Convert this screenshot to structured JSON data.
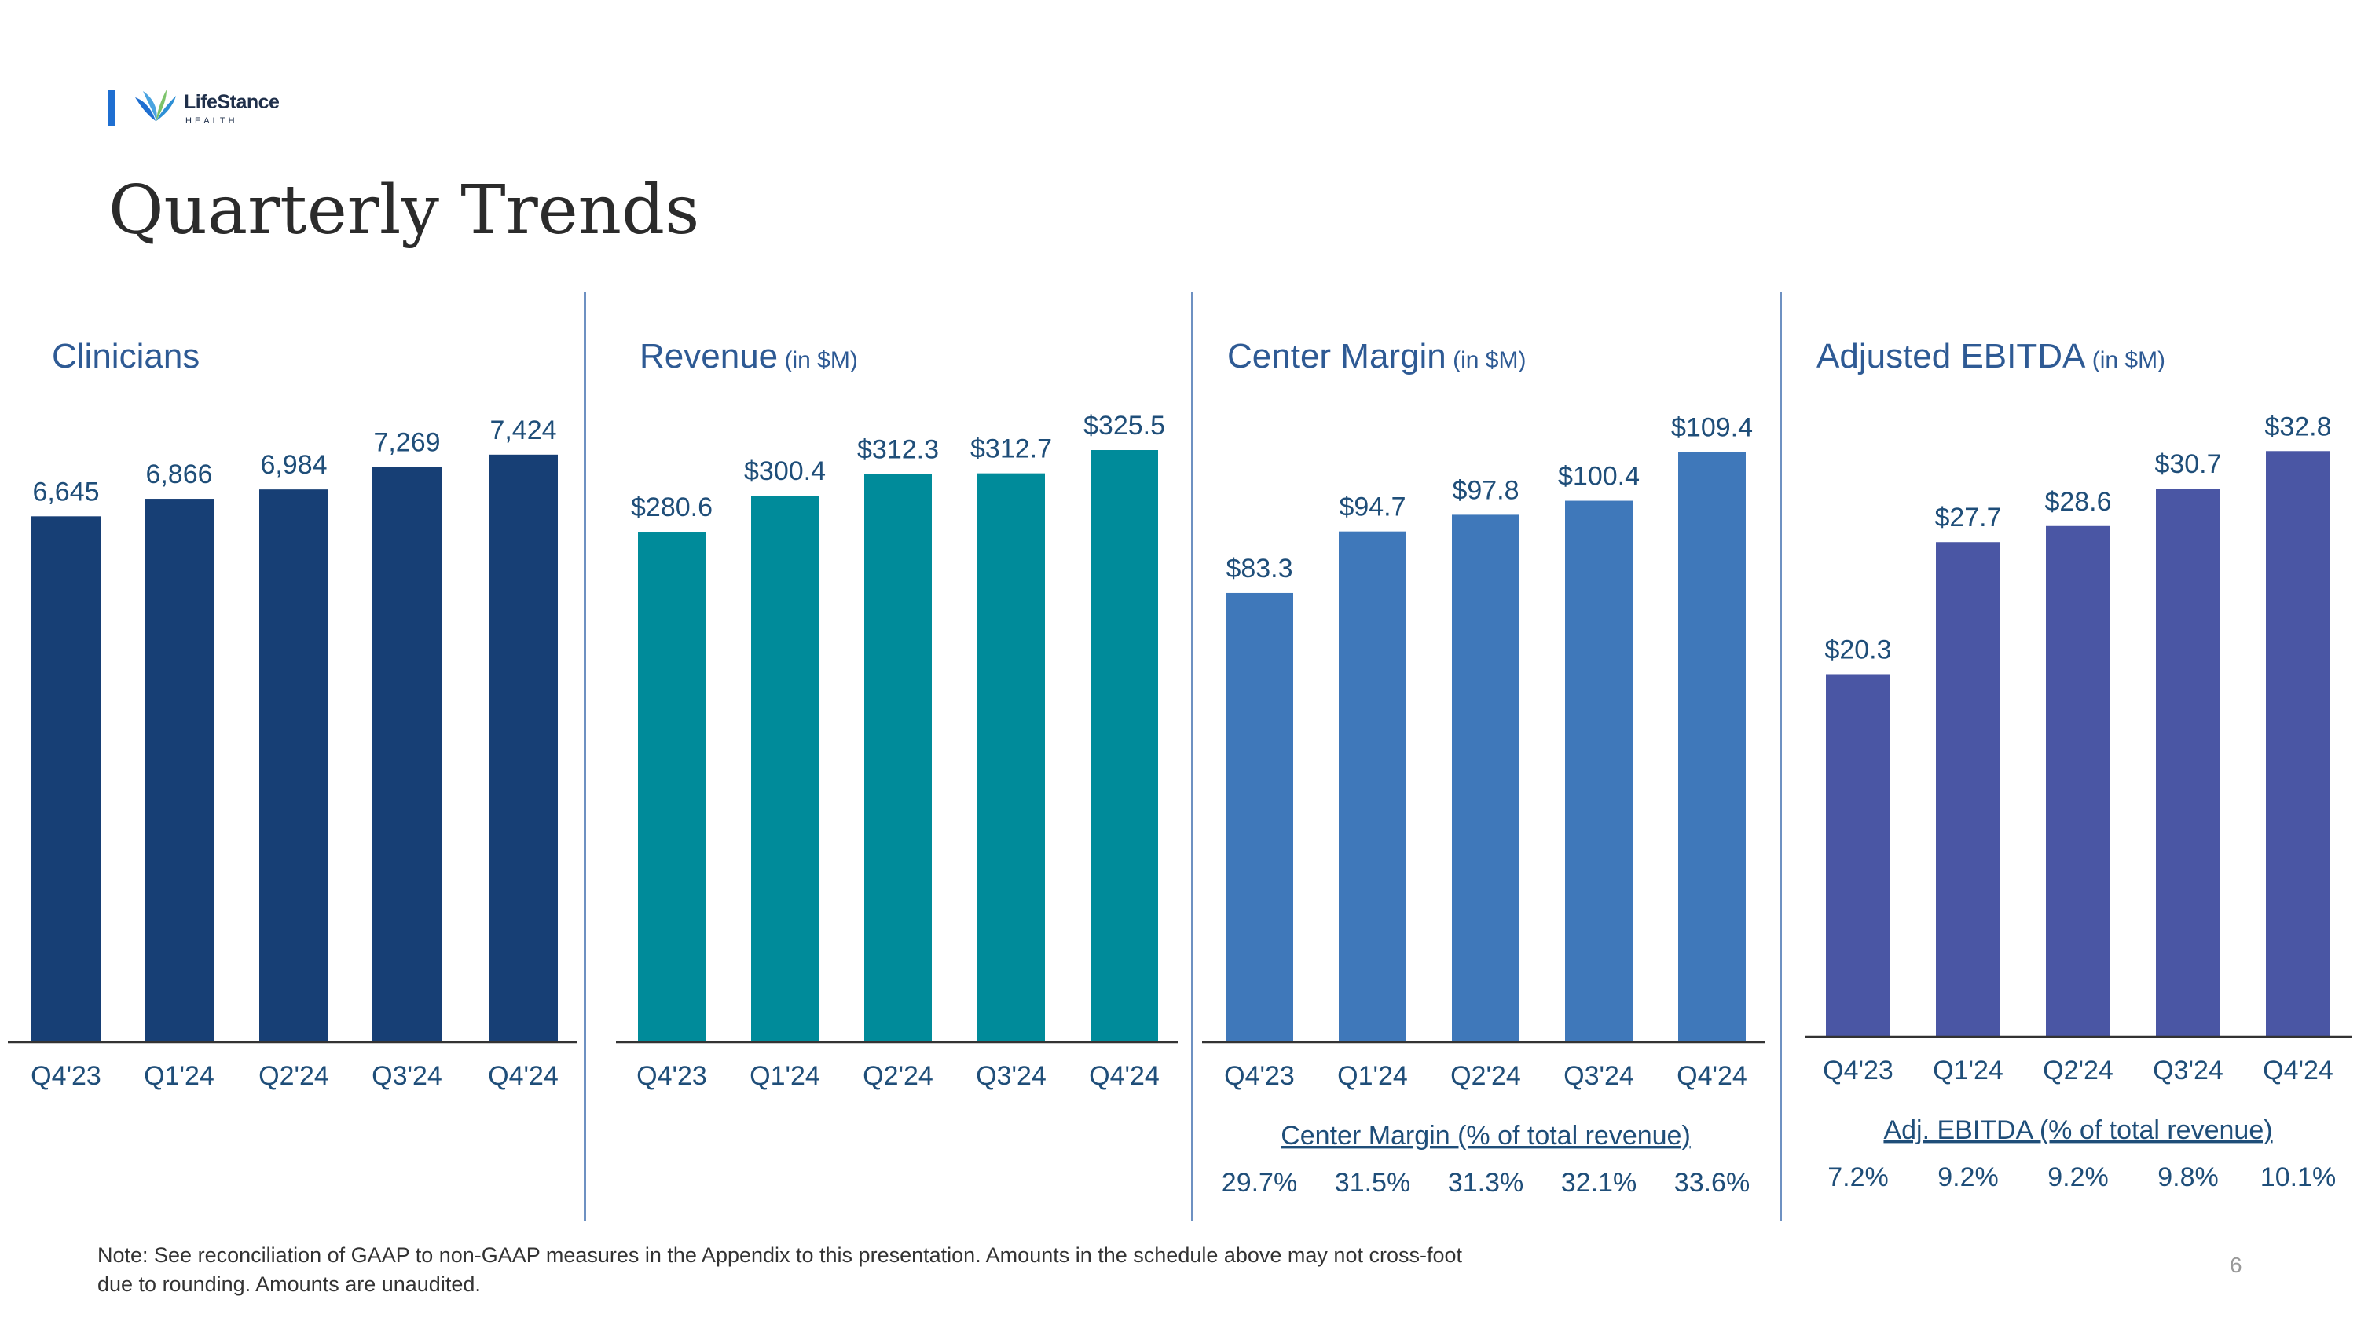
{
  "header": {
    "logo_name": "LifeStance",
    "logo_sub": "HEALTH",
    "title": "Quarterly Trends"
  },
  "colors": {
    "clinicians": "#173f75",
    "revenue": "#008b9a",
    "center_margin": "#3f78ba",
    "adjusted_ebitda": "#4a56a4",
    "label_text": "#1f4e79",
    "title_text": "#2e5a94",
    "divider": "#6e91c2"
  },
  "chart_data": [
    {
      "type": "bar",
      "title": "Clinicians",
      "unit": "",
      "categories": [
        "Q4'23",
        "Q1'24",
        "Q2'24",
        "Q3'24",
        "Q4'24"
      ],
      "values": [
        6645,
        6866,
        6984,
        7269,
        7424
      ],
      "labels": [
        "6,645",
        "6,866",
        "6,984",
        "7,269",
        "7,424"
      ],
      "ylim": [
        0,
        7700
      ]
    },
    {
      "type": "bar",
      "title": "Revenue",
      "unit": "(in $M)",
      "categories": [
        "Q4'23",
        "Q1'24",
        "Q2'24",
        "Q3'24",
        "Q4'24"
      ],
      "values": [
        280.6,
        300.4,
        312.3,
        312.7,
        325.5
      ],
      "labels": [
        "$280.6",
        "$300.4",
        "$312.3",
        "$312.7",
        "$325.5"
      ],
      "ylim": [
        0,
        335
      ]
    },
    {
      "type": "bar",
      "title": "Center Margin",
      "unit": "(in $M)",
      "categories": [
        "Q4'23",
        "Q1'24",
        "Q2'24",
        "Q3'24",
        "Q4'24"
      ],
      "values": [
        83.3,
        94.7,
        97.8,
        100.4,
        109.4
      ],
      "labels": [
        "$83.3",
        "$94.7",
        "$97.8",
        "$100.4",
        "$109.4"
      ],
      "ylim": [
        0,
        113
      ],
      "sub_title": "Center Margin (% of total revenue)",
      "sub_values": [
        "29.7%",
        "31.5%",
        "31.3%",
        "32.1%",
        "33.6%"
      ]
    },
    {
      "type": "bar",
      "title": "Adjusted EBITDA",
      "unit": "(in $M)",
      "categories": [
        "Q4'23",
        "Q1'24",
        "Q2'24",
        "Q3'24",
        "Q4'24"
      ],
      "values": [
        20.3,
        27.7,
        28.6,
        30.7,
        32.8
      ],
      "labels": [
        "$20.3",
        "$27.7",
        "$28.6",
        "$30.7",
        "$32.8"
      ],
      "ylim": [
        0,
        34
      ],
      "sub_title": "Adj. EBITDA (% of total revenue)",
      "sub_values": [
        "7.2%",
        "9.2%",
        "9.2%",
        "9.8%",
        "10.1%"
      ]
    }
  ],
  "footer": {
    "note_line1": "Note:  See reconciliation of GAAP to non-GAAP measures in the Appendix to this presentation. Amounts in the schedule above may not cross-foot",
    "note_line2": "due to rounding. Amounts are unaudited.",
    "page_number": "6"
  }
}
